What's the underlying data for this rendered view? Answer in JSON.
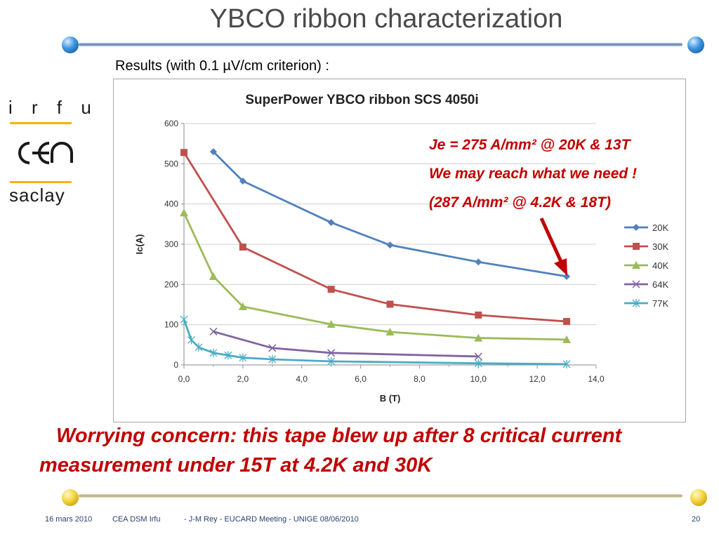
{
  "slide": {
    "title": "YBCO ribbon characterization",
    "subtitle": "Results (with 0.1 µV/cm criterion) :",
    "logo": {
      "irfu": "i r f u",
      "cea": "cea",
      "saclay": "saclay"
    },
    "annotations": [
      "Je = 275 A/mm² @ 20K & 13T",
      "We may reach what we need !",
      "(287 A/mm² @ 4.2K & 18T)"
    ],
    "concern": "Worrying concern: this tape blew up after 8 critical current measurement under 15T at 4.2K and 30K",
    "footer": {
      "date": "16 mars 2010",
      "org": "CEA DSM Irfu",
      "meeting": "- J-M Rey - EUCARD Meeting  - UNIGE 08/06/2010",
      "page": "20"
    },
    "colors": {
      "accent_red": "#c00000",
      "title_gray": "#4a4a4a",
      "rule_blue": "#5f84b3",
      "rule_gold": "#b4a878"
    }
  },
  "chart_data": {
    "type": "line",
    "title": "SuperPower YBCO ribbon SCS 4050i",
    "xlabel": "B (T)",
    "ylabel": "Ic(A)",
    "xlim": [
      0,
      14
    ],
    "ylim": [
      0,
      600
    ],
    "xticks": [
      "0,0",
      "2,0",
      "4,0",
      "6,0",
      "8,0",
      "10,0",
      "12,0",
      "14,0"
    ],
    "yticks": [
      "0",
      "100",
      "200",
      "300",
      "400",
      "500",
      "600"
    ],
    "grid": "horizontal",
    "legend": "right",
    "series": [
      {
        "name": "20K",
        "color": "#4f81bd",
        "marker": "diamond",
        "points": [
          [
            1,
            530
          ],
          [
            2,
            457
          ],
          [
            5,
            354
          ],
          [
            7,
            298
          ],
          [
            10,
            256
          ],
          [
            13,
            220
          ]
        ]
      },
      {
        "name": "30K",
        "color": "#c0504d",
        "marker": "square",
        "points": [
          [
            0,
            528
          ],
          [
            2,
            293
          ],
          [
            5,
            188
          ],
          [
            7,
            151
          ],
          [
            10,
            124
          ],
          [
            13,
            108
          ]
        ]
      },
      {
        "name": "40K",
        "color": "#9bbb59",
        "marker": "triangle",
        "points": [
          [
            0,
            378
          ],
          [
            1,
            220
          ],
          [
            2,
            145
          ],
          [
            5,
            101
          ],
          [
            7,
            82
          ],
          [
            10,
            67
          ],
          [
            13,
            63
          ]
        ]
      },
      {
        "name": "64K",
        "color": "#8064a2",
        "marker": "x",
        "points": [
          [
            1,
            83
          ],
          [
            3,
            42
          ],
          [
            5,
            30
          ],
          [
            10,
            21
          ]
        ]
      },
      {
        "name": "77K",
        "color": "#4bacc6",
        "marker": "star",
        "points": [
          [
            0,
            113
          ],
          [
            0.25,
            62
          ],
          [
            0.5,
            44
          ],
          [
            1,
            30
          ],
          [
            1.5,
            24
          ],
          [
            2,
            18
          ],
          [
            3,
            14
          ],
          [
            5,
            9
          ],
          [
            10,
            4
          ],
          [
            13,
            2
          ]
        ]
      }
    ]
  }
}
